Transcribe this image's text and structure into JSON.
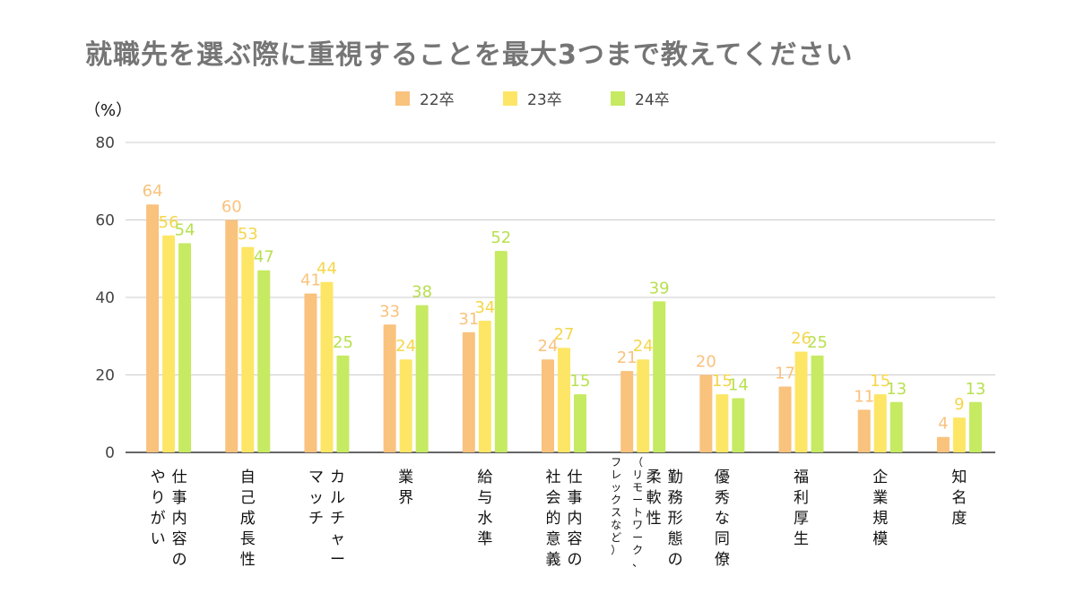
{
  "chart_data": {
    "type": "bar",
    "title": "就職先を選ぶ際に重視することを最大3つまで教えてください",
    "ylabel": "（%）",
    "ylim": [
      0,
      80
    ],
    "yticks": [
      "0",
      "20",
      "40",
      "60",
      "80"
    ],
    "grid": true,
    "legend_position": "top-center",
    "categories": [
      [
        "仕事内容の",
        "やりがい"
      ],
      [
        "自己成長性"
      ],
      [
        "カルチャー",
        "マッチ"
      ],
      [
        "業界"
      ],
      [
        "給与水準"
      ],
      [
        "仕事内容の",
        "社会的意義"
      ],
      [
        "勤務形態の",
        "柔軟性",
        "（リモートワーク、",
        "フレックスなど）"
      ],
      [
        "優秀な同僚"
      ],
      [
        "福利厚生"
      ],
      [
        "企業規模"
      ],
      [
        "知名度"
      ]
    ],
    "series": [
      {
        "name": "22卒",
        "color": "#F9C27D",
        "label_color": "#F9C27D",
        "values": [
          64,
          60,
          41,
          33,
          31,
          24,
          21,
          20,
          17,
          11,
          4
        ]
      },
      {
        "name": "23卒",
        "color": "#FDE666",
        "label_color": "#F5D64A",
        "values": [
          56,
          53,
          44,
          24,
          34,
          27,
          24,
          15,
          26,
          15,
          9
        ]
      },
      {
        "name": "24卒",
        "color": "#C6EA62",
        "label_color": "#B8E050",
        "values": [
          54,
          47,
          25,
          38,
          52,
          15,
          39,
          14,
          25,
          13,
          13
        ]
      }
    ]
  }
}
